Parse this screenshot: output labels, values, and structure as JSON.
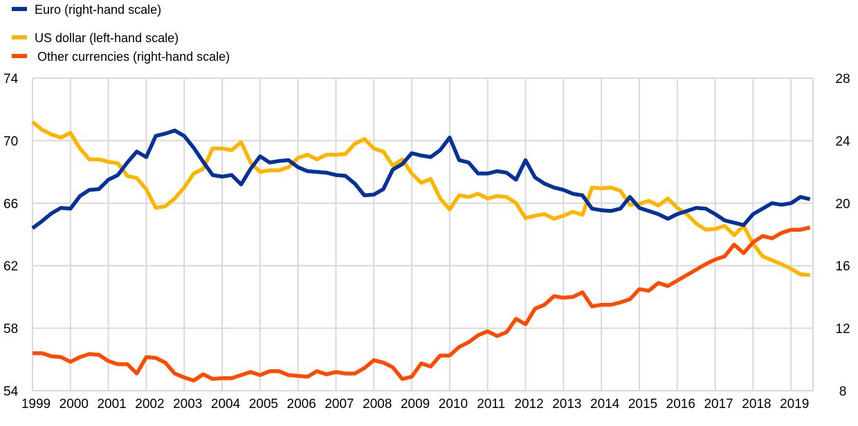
{
  "chart_data": {
    "type": "line",
    "title": "",
    "xlabel": "",
    "ylabel_left": "",
    "ylabel_right": "",
    "x_start": 1999.0,
    "x_step": 0.25,
    "xlim": [
      1999.0,
      2019.58
    ],
    "x_tick_labels": [
      "1999",
      "2000",
      "2001",
      "2002",
      "2003",
      "2004",
      "2005",
      "2006",
      "2007",
      "2008",
      "2009",
      "2010",
      "2011",
      "2012",
      "2013",
      "2014",
      "2015",
      "2016",
      "2017",
      "2018",
      "2019"
    ],
    "ylim_left": [
      54,
      74
    ],
    "y_ticks_left": [
      "54",
      "58",
      "62",
      "66",
      "70",
      "74"
    ],
    "ylim_right": [
      8,
      28
    ],
    "y_ticks_right": [
      "8",
      "12",
      "16",
      "20",
      "24",
      "28"
    ],
    "grid": true,
    "legend_position": "top-left",
    "series": [
      {
        "name": "Euro (right-hand scale)",
        "axis": "right",
        "color": "#003299",
        "values": [
          18.4,
          18.85,
          19.35,
          19.7,
          19.65,
          20.45,
          20.85,
          20.9,
          21.5,
          21.8,
          22.6,
          23.3,
          22.95,
          24.3,
          24.45,
          24.65,
          24.3,
          23.55,
          22.65,
          21.8,
          21.7,
          21.8,
          21.2,
          22.2,
          23.0,
          22.6,
          22.7,
          22.75,
          22.3,
          22.05,
          22.0,
          21.95,
          21.8,
          21.75,
          21.25,
          20.5,
          20.55,
          20.9,
          22.15,
          22.5,
          23.2,
          23.05,
          22.95,
          23.4,
          24.2,
          22.75,
          22.6,
          21.9,
          21.9,
          22.05,
          21.95,
          21.5,
          22.75,
          21.65,
          21.25,
          21.0,
          20.85,
          20.6,
          20.5,
          19.65,
          19.55,
          19.5,
          19.65,
          20.4,
          19.7,
          19.5,
          19.3,
          19.0,
          19.3,
          19.5,
          19.7,
          19.65,
          19.3,
          18.9,
          18.75,
          18.6,
          19.3,
          19.65,
          20.0,
          19.9,
          20.0,
          20.4,
          20.25
        ]
      },
      {
        "name": "US dollar (left-hand scale)",
        "axis": "left",
        "color": "#FFB400",
        "values": [
          71.2,
          70.7,
          70.4,
          70.2,
          70.5,
          69.5,
          68.8,
          68.8,
          68.65,
          68.55,
          67.75,
          67.6,
          66.9,
          65.7,
          65.8,
          66.3,
          67.0,
          67.9,
          68.2,
          69.5,
          69.5,
          69.4,
          69.9,
          68.6,
          68.0,
          68.1,
          68.1,
          68.3,
          68.9,
          69.1,
          68.8,
          69.1,
          69.1,
          69.15,
          69.8,
          70.1,
          69.5,
          69.3,
          68.4,
          68.8,
          67.9,
          67.3,
          67.55,
          66.3,
          65.6,
          66.5,
          66.4,
          66.6,
          66.3,
          66.45,
          66.4,
          66.0,
          65.05,
          65.2,
          65.3,
          65.0,
          65.2,
          65.45,
          65.25,
          67.0,
          66.95,
          67.0,
          66.8,
          65.9,
          65.95,
          66.15,
          65.85,
          66.3,
          65.7,
          65.3,
          64.7,
          64.3,
          64.35,
          64.55,
          63.95,
          64.55,
          63.4,
          62.6,
          62.35,
          62.1,
          61.8,
          61.45,
          61.4
        ]
      },
      {
        "name": "Other currencies (right-hand scale)",
        "axis": "right",
        "color": "#FF4B00",
        "values": [
          10.4,
          10.4,
          10.2,
          10.15,
          9.85,
          10.15,
          10.35,
          10.3,
          9.9,
          9.7,
          9.7,
          9.1,
          10.15,
          10.1,
          9.8,
          9.1,
          8.85,
          8.65,
          9.05,
          8.75,
          8.8,
          8.8,
          9.0,
          9.2,
          9.0,
          9.25,
          9.25,
          9.0,
          8.95,
          8.9,
          9.25,
          9.05,
          9.2,
          9.1,
          9.1,
          9.45,
          9.95,
          9.8,
          9.5,
          8.75,
          8.9,
          9.75,
          9.55,
          10.25,
          10.25,
          10.8,
          11.1,
          11.55,
          11.8,
          11.5,
          11.75,
          12.6,
          12.25,
          13.25,
          13.5,
          14.05,
          13.95,
          14.0,
          14.3,
          13.4,
          13.5,
          13.5,
          13.65,
          13.85,
          14.5,
          14.4,
          14.9,
          14.7,
          15.05,
          15.4,
          15.75,
          16.1,
          16.4,
          16.6,
          17.35,
          16.8,
          17.5,
          17.9,
          17.75,
          18.1,
          18.3,
          18.3,
          18.45
        ]
      }
    ]
  }
}
